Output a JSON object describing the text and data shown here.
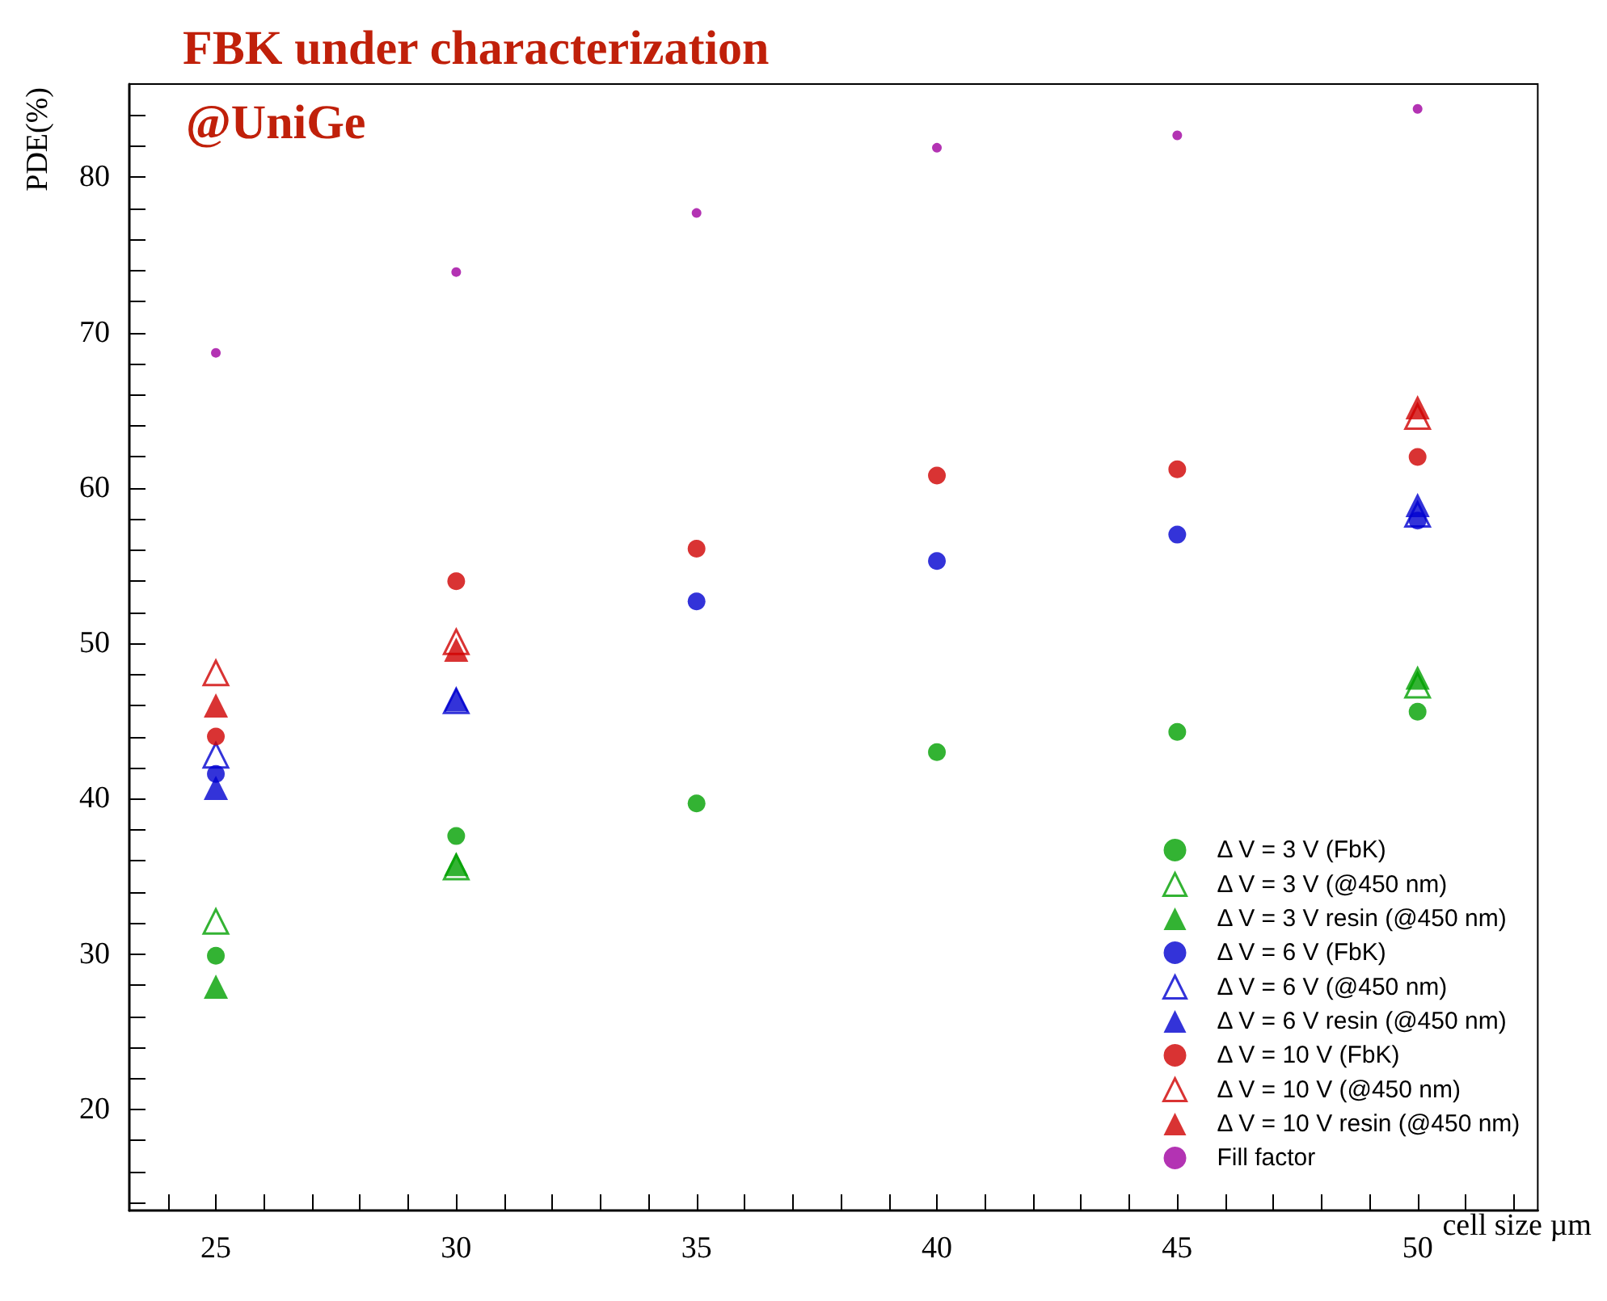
{
  "chart_data": {
    "type": "scatter",
    "title": "FBK under characterization",
    "subtitle": "@UniGe",
    "xlabel": "cell size µm",
    "ylabel": "PDE(%)",
    "xlim": [
      23.2,
      52.5
    ],
    "ylim": [
      13.5,
      86
    ],
    "xticks": [
      {
        "value": 24,
        "label": null
      },
      25,
      {
        "value": 26,
        "label": null
      },
      {
        "value": 27,
        "label": null
      },
      {
        "value": 28,
        "label": null
      },
      {
        "value": 29,
        "label": null
      },
      30,
      {
        "value": 31,
        "label": null
      },
      {
        "value": 32,
        "label": null
      },
      {
        "value": 33,
        "label": null
      },
      {
        "value": 34,
        "label": null
      },
      35,
      {
        "value": 36,
        "label": null
      },
      {
        "value": 37,
        "label": null
      },
      {
        "value": 38,
        "label": null
      },
      {
        "value": 39,
        "label": null
      },
      40,
      {
        "value": 41,
        "label": null
      },
      {
        "value": 42,
        "label": null
      },
      {
        "value": 43,
        "label": null
      },
      {
        "value": 44,
        "label": null
      },
      45,
      {
        "value": 46,
        "label": null
      },
      {
        "value": 47,
        "label": null
      },
      {
        "value": 48,
        "label": null
      },
      {
        "value": 49,
        "label": null
      },
      50,
      {
        "value": 51,
        "label": null
      },
      {
        "value": 52,
        "label": null
      }
    ],
    "yticks": [
      {
        "value": 14,
        "label": null
      },
      {
        "value": 16,
        "label": null
      },
      {
        "value": 18,
        "label": null
      },
      20,
      {
        "value": 22,
        "label": null
      },
      {
        "value": 24,
        "label": null
      },
      {
        "value": 26,
        "label": null
      },
      {
        "value": 28,
        "label": null
      },
      30,
      {
        "value": 32,
        "label": null
      },
      {
        "value": 34,
        "label": null
      },
      {
        "value": 36,
        "label": null
      },
      {
        "value": 38,
        "label": null
      },
      40,
      {
        "value": 42,
        "label": null
      },
      {
        "value": 44,
        "label": null
      },
      {
        "value": 46,
        "label": null
      },
      {
        "value": 48,
        "label": null
      },
      50,
      {
        "value": 52,
        "label": null
      },
      {
        "value": 54,
        "label": null
      },
      {
        "value": 56,
        "label": null
      },
      {
        "value": 58,
        "label": null
      },
      60,
      {
        "value": 62,
        "label": null
      },
      {
        "value": 64,
        "label": null
      },
      {
        "value": 66,
        "label": null
      },
      {
        "value": 68,
        "label": null
      },
      70,
      {
        "value": 72,
        "label": null
      },
      {
        "value": 74,
        "label": null
      },
      {
        "value": 76,
        "label": null
      },
      {
        "value": 78,
        "label": null
      },
      80,
      {
        "value": 82,
        "label": null
      },
      {
        "value": 84,
        "label": null
      }
    ],
    "grid": false,
    "legend": "bottom right",
    "series": [
      {
        "name": "Δ V = 3 V (FbK)",
        "color": "#00a000",
        "marker": "circle",
        "x": [
          25,
          30,
          35,
          40,
          45,
          50
        ],
        "values": [
          29.9,
          37.6,
          39.7,
          43.0,
          44.3,
          45.6
        ]
      },
      {
        "name": "Δ V = 3 V (@450 nm)",
        "color": "#00a000",
        "marker": "triangle-open",
        "x": [
          25,
          30,
          50
        ],
        "values": [
          32.1,
          35.6,
          47.3
        ]
      },
      {
        "name": "Δ V = 3 V resin (@450 nm)",
        "color": "#00a000",
        "marker": "triangle",
        "x": [
          25,
          30,
          50
        ],
        "values": [
          27.9,
          35.8,
          47.8
        ]
      },
      {
        "name": "Δ V = 6 V (FbK)",
        "color": "#0000d0",
        "marker": "circle",
        "x": [
          25,
          35,
          40,
          45,
          50
        ],
        "values": [
          41.6,
          52.7,
          55.3,
          57.0,
          57.9
        ]
      },
      {
        "name": "Δ V = 6 V (@450 nm)",
        "color": "#0000d0",
        "marker": "triangle-open",
        "x": [
          25,
          30,
          50
        ],
        "values": [
          42.8,
          46.3,
          58.3
        ]
      },
      {
        "name": "Δ V = 6 V resin (@450 nm)",
        "color": "#0000d0",
        "marker": "triangle",
        "x": [
          25,
          30,
          50
        ],
        "values": [
          40.7,
          46.4,
          58.9
        ]
      },
      {
        "name": "Δ V = 10 V (FbK)",
        "color": "#d00000",
        "marker": "circle",
        "x": [
          25,
          30,
          35,
          40,
          45,
          50
        ],
        "values": [
          44.0,
          54.0,
          56.1,
          60.8,
          61.2,
          62.0
        ]
      },
      {
        "name": "Δ V = 10 V (@450 nm)",
        "color": "#d00000",
        "marker": "triangle-open",
        "x": [
          25,
          30,
          50
        ],
        "values": [
          48.1,
          50.1,
          64.6
        ]
      },
      {
        "name": "Δ V = 10 V resin (@450 nm)",
        "color": "#d00000",
        "marker": "triangle",
        "x": [
          25,
          30,
          50
        ],
        "values": [
          46.0,
          49.6,
          65.2
        ]
      },
      {
        "name": "Fill factor",
        "color": "#a000a0",
        "marker": "circle-small",
        "x": [
          25,
          30,
          35,
          40,
          45,
          50
        ],
        "values": [
          68.7,
          73.9,
          77.7,
          81.9,
          82.7,
          84.4
        ]
      }
    ]
  }
}
